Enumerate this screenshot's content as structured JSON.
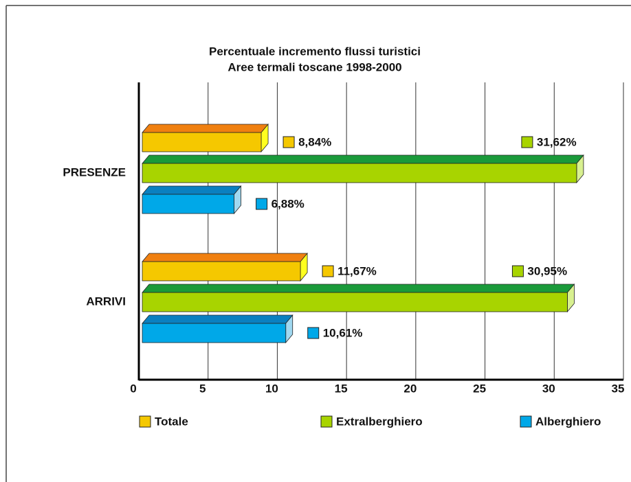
{
  "chart_data": {
    "type": "bar3d-horizontal",
    "title": [
      "Percentuale incremento flussi turistici",
      "Aree termali toscane 1998-2000"
    ],
    "categories": [
      "PRESENZE",
      "ARRIVI"
    ],
    "series": [
      {
        "name": "Totale",
        "color": "#f5c800",
        "top_color": "#f08010",
        "side_color": "#ffff20",
        "values": [
          8.84,
          11.67
        ],
        "value_labels": [
          "8,84%",
          "11,67%"
        ]
      },
      {
        "name": "Extralberghiero",
        "color": "#a8d400",
        "top_color": "#1a9a3a",
        "side_color": "#d8f090",
        "values": [
          31.62,
          30.95
        ],
        "value_labels": [
          "31,62%",
          "30,95%"
        ]
      },
      {
        "name": "Alberghiero",
        "color": "#00a8e8",
        "top_color": "#0a80c0",
        "side_color": "#a0d8f0",
        "values": [
          6.88,
          10.61
        ],
        "value_labels": [
          "6,88%",
          "10,61%"
        ]
      }
    ],
    "xlim": [
      0,
      35
    ],
    "xticks": [
      0,
      5,
      10,
      15,
      20,
      25,
      30,
      35
    ],
    "grid": true,
    "legend": "bottom"
  }
}
